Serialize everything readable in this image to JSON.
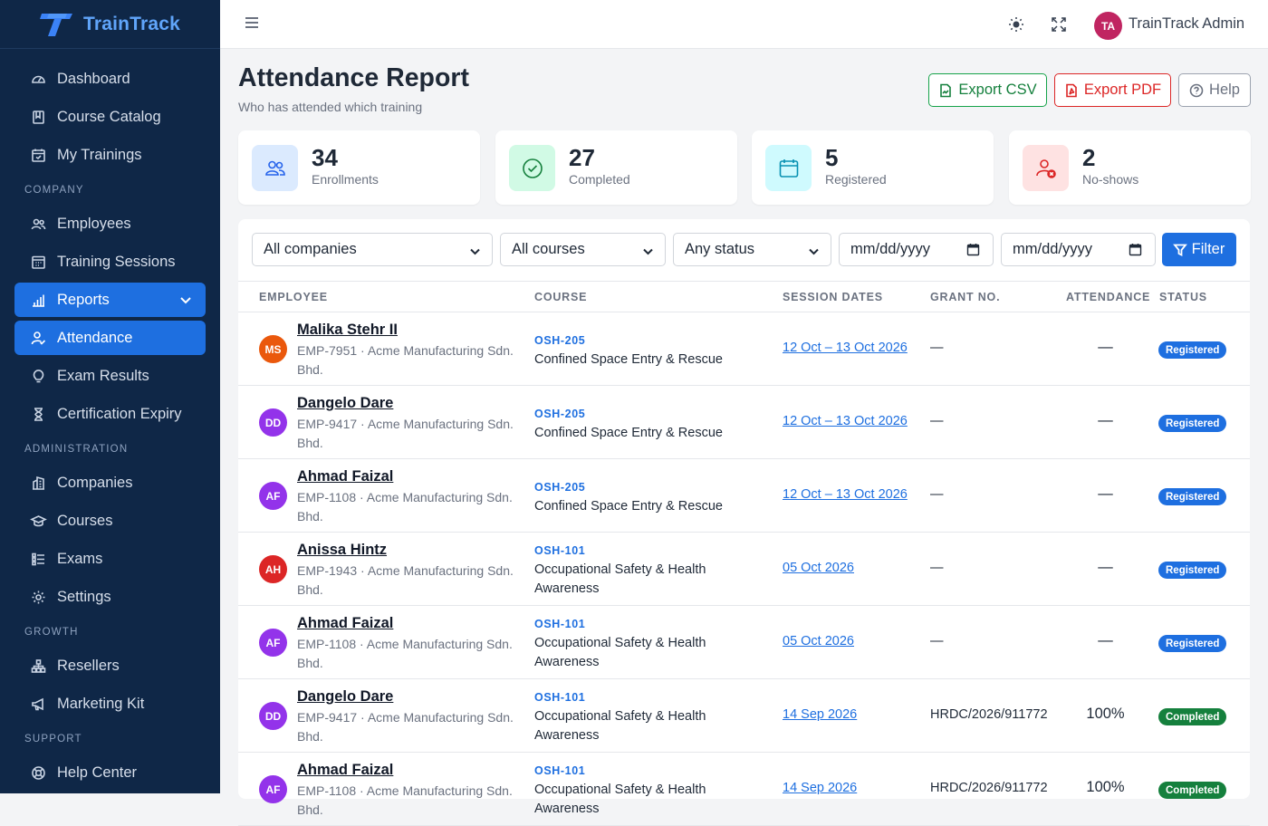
{
  "brand": {
    "name": "TrainTrack"
  },
  "topbar": {
    "user_initials": "TA",
    "user_name": "TrainTrack Admin"
  },
  "sidebar": {
    "top_items": [
      {
        "label": "Dashboard"
      },
      {
        "label": "Course Catalog"
      },
      {
        "label": "My Trainings"
      }
    ],
    "company_header": "COMPANY",
    "company_items": [
      {
        "label": "Employees"
      },
      {
        "label": "Training Sessions"
      },
      {
        "label": "Reports"
      },
      {
        "label": "Attendance"
      },
      {
        "label": "Exam Results"
      },
      {
        "label": "Certification Expiry"
      }
    ],
    "admin_header": "ADMINISTRATION",
    "admin_items": [
      {
        "label": "Companies"
      },
      {
        "label": "Courses"
      },
      {
        "label": "Exams"
      },
      {
        "label": "Settings"
      }
    ],
    "growth_header": "GROWTH",
    "growth_items": [
      {
        "label": "Resellers"
      },
      {
        "label": "Marketing Kit"
      }
    ],
    "support_header": "SUPPORT",
    "support_items": [
      {
        "label": "Help Center"
      }
    ]
  },
  "header": {
    "title": "Attendance Report",
    "subtitle": "Who has attended which training",
    "export_csv": "Export CSV",
    "export_pdf": "Export PDF",
    "help": "Help"
  },
  "stats": [
    {
      "value": "34",
      "label": "Enrollments"
    },
    {
      "value": "27",
      "label": "Completed"
    },
    {
      "value": "5",
      "label": "Registered"
    },
    {
      "value": "2",
      "label": "No-shows"
    }
  ],
  "filters": {
    "company": "All companies",
    "course": "All courses",
    "status": "Any status",
    "date_from": "mm/dd/yyyy",
    "date_to": "mm/dd/yyyy",
    "filter_button": "Filter"
  },
  "table": {
    "headers": {
      "employee": "EMPLOYEE",
      "course": "COURSE",
      "session_dates": "SESSION DATES",
      "grant_no": "GRANT NO.",
      "attendance": "ATTENDANCE",
      "status": "STATUS"
    },
    "rows": [
      {
        "initials": "MS",
        "avatar_color": "#ea580c",
        "name": "Malika Stehr II",
        "meta": "EMP-7951 · Acme Manufacturing Sdn. Bhd.",
        "course_code": "OSH-205",
        "course_name": "Confined Space Entry & Rescue",
        "dates": "12 Oct – 13 Oct 2026",
        "grant": "—",
        "attendance": "—",
        "status": "Registered"
      },
      {
        "initials": "DD",
        "avatar_color": "#9333ea",
        "name": "Dangelo Dare",
        "meta": "EMP-9417 · Acme Manufacturing Sdn. Bhd.",
        "course_code": "OSH-205",
        "course_name": "Confined Space Entry & Rescue",
        "dates": "12 Oct – 13 Oct 2026",
        "grant": "—",
        "attendance": "—",
        "status": "Registered"
      },
      {
        "initials": "AF",
        "avatar_color": "#9333ea",
        "name": "Ahmad Faizal",
        "meta": "EMP-1108 · Acme Manufacturing Sdn. Bhd.",
        "course_code": "OSH-205",
        "course_name": "Confined Space Entry & Rescue",
        "dates": "12 Oct – 13 Oct 2026",
        "grant": "—",
        "attendance": "—",
        "status": "Registered"
      },
      {
        "initials": "AH",
        "avatar_color": "#dc2626",
        "name": "Anissa Hintz",
        "meta": "EMP-1943 · Acme Manufacturing Sdn. Bhd.",
        "course_code": "OSH-101",
        "course_name": "Occupational Safety & Health Awareness",
        "dates": "05 Oct 2026",
        "grant": "—",
        "attendance": "—",
        "status": "Registered"
      },
      {
        "initials": "AF",
        "avatar_color": "#9333ea",
        "name": "Ahmad Faizal",
        "meta": "EMP-1108 · Acme Manufacturing Sdn. Bhd.",
        "course_code": "OSH-101",
        "course_name": "Occupational Safety & Health Awareness",
        "dates": "05 Oct 2026",
        "grant": "—",
        "attendance": "—",
        "status": "Registered"
      },
      {
        "initials": "DD",
        "avatar_color": "#9333ea",
        "name": "Dangelo Dare",
        "meta": "EMP-9417 · Acme Manufacturing Sdn. Bhd.",
        "course_code": "OSH-101",
        "course_name": "Occupational Safety & Health Awareness",
        "dates": "14 Sep 2026",
        "grant": "HRDC/2026/911772",
        "attendance": "100%",
        "status": "Completed"
      },
      {
        "initials": "AF",
        "avatar_color": "#9333ea",
        "name": "Ahmad Faizal",
        "meta": "EMP-1108 · Acme Manufacturing Sdn. Bhd.",
        "course_code": "OSH-101",
        "course_name": "Occupational Safety & Health Awareness",
        "dates": "14 Sep 2026",
        "grant": "HRDC/2026/911772",
        "attendance": "100%",
        "status": "Completed"
      }
    ]
  },
  "colors": {
    "sidebar_bg": "#0f2747",
    "accent": "#1e6fe0",
    "registered": "#1e6fe0",
    "completed": "#15803d"
  }
}
